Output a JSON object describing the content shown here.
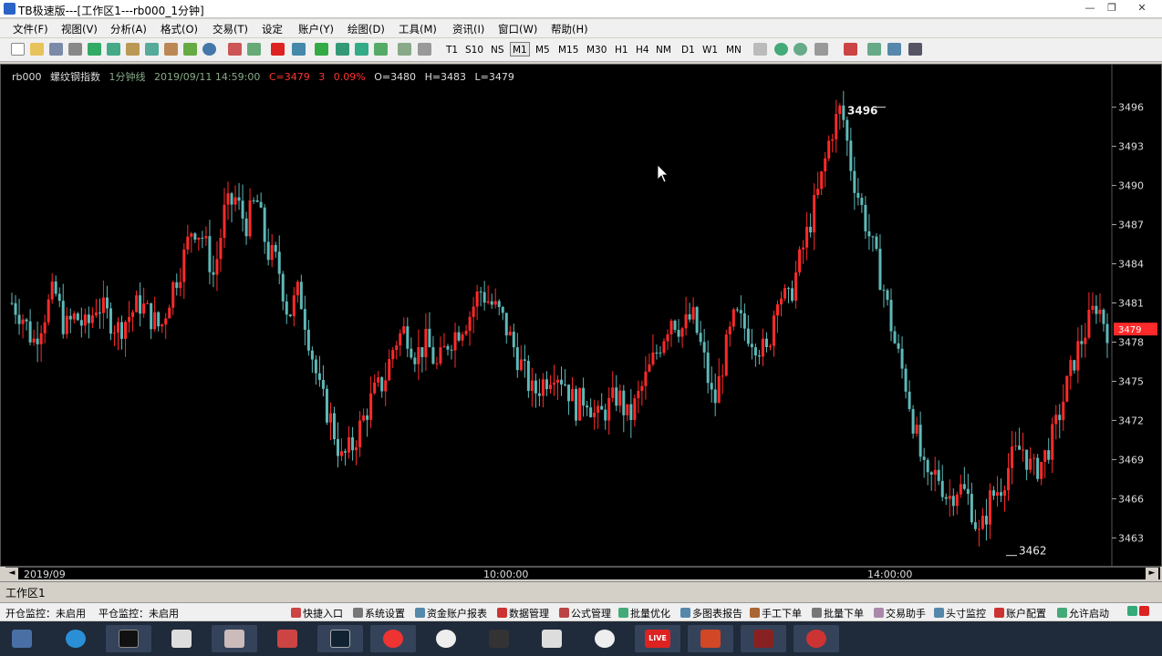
{
  "window": {
    "title": "TB极速版---[工作区1---rb000_1分钟]",
    "minimize_glyph": "—",
    "restore_glyph": "❐",
    "close_glyph": "✕"
  },
  "menu": [
    "文件(F)",
    "视图(V)",
    "分析(A)",
    "格式(O)",
    "交易(T)",
    "设定",
    "账户(Y)",
    "绘图(D)",
    "工具(M)",
    "资讯(I)",
    "窗口(W)",
    "帮助(H)"
  ],
  "periods": [
    "T1",
    "S10",
    "NS",
    "M1",
    "M5",
    "M15",
    "M30",
    "H1",
    "H4",
    "NM",
    "D1",
    "W1",
    "MN"
  ],
  "active_period": "M1",
  "chart_header": {
    "symbol": "rb000",
    "name": "螺纹钢指数",
    "period": "1分钟线",
    "datetime": "2019/09/11 14:59:00",
    "close_label": "C=3479",
    "change": "3",
    "change_pct": "0.09%",
    "open_label": "O=3480",
    "high_label": "H=3483",
    "low_label": "L=3479"
  },
  "chart_data": {
    "type": "candlestick",
    "y_ticks": [
      3496,
      3493,
      3490,
      3487,
      3484,
      3481,
      3478,
      3475,
      3472,
      3469,
      3466,
      3463
    ],
    "ylim": [
      3461,
      3498
    ],
    "current_price": 3479,
    "high_marker": "3496",
    "low_marker": "3462",
    "x_ticks": [
      "2019/09",
      "10:00:00",
      "14:00:00"
    ],
    "colors": {
      "up": "#ff2a2a",
      "down": "#5fb8b8",
      "price_tag": "#ff2a2a",
      "axis_text": "#dddddd"
    },
    "series_path": [
      3481,
      3480,
      3478,
      3480,
      3482,
      3479,
      3480,
      3479,
      3481,
      3480,
      3479,
      3480,
      3481,
      3480,
      3479,
      3482,
      3484,
      3487,
      3486,
      3483,
      3488,
      3489,
      3487,
      3489,
      3485,
      3484,
      3480,
      3482,
      3478,
      3474,
      3472,
      3469,
      3470,
      3472,
      3474,
      3475,
      3478,
      3479,
      3477,
      3478,
      3476,
      3478,
      3479,
      3480,
      3482,
      3481,
      3480,
      3478,
      3476,
      3474,
      3475,
      3476,
      3475,
      3473,
      3474,
      3472,
      3473,
      3474,
      3472,
      3474,
      3476,
      3478,
      3480,
      3479,
      3480,
      3477,
      3473,
      3477,
      3480,
      3479,
      3478,
      3477,
      3482,
      3481,
      3484,
      3487,
      3490,
      3494,
      3496,
      3491,
      3488,
      3485,
      3482,
      3478,
      3475,
      3471,
      3467,
      3468,
      3466,
      3467,
      3466,
      3463,
      3466,
      3467,
      3469,
      3470,
      3468,
      3469,
      3471,
      3474,
      3477,
      3479,
      3481,
      3479
    ]
  },
  "scrollbar": {
    "left_arrow": "◄",
    "right_arrow": "►"
  },
  "workspace_tab": "工作区1",
  "status": {
    "open_monitor": "开仓监控：未启用",
    "close_monitor": "平仓监控：未启用",
    "items": [
      "快捷入口",
      "系统设置",
      "资金账户报表",
      "数据管理",
      "公式管理",
      "批量优化",
      "多图表报告",
      "手工下单",
      "批量下单",
      "交易助手",
      "头寸监控",
      "账户配置",
      "允许启动"
    ]
  },
  "taskbar": {
    "live_label": "LIVE"
  }
}
